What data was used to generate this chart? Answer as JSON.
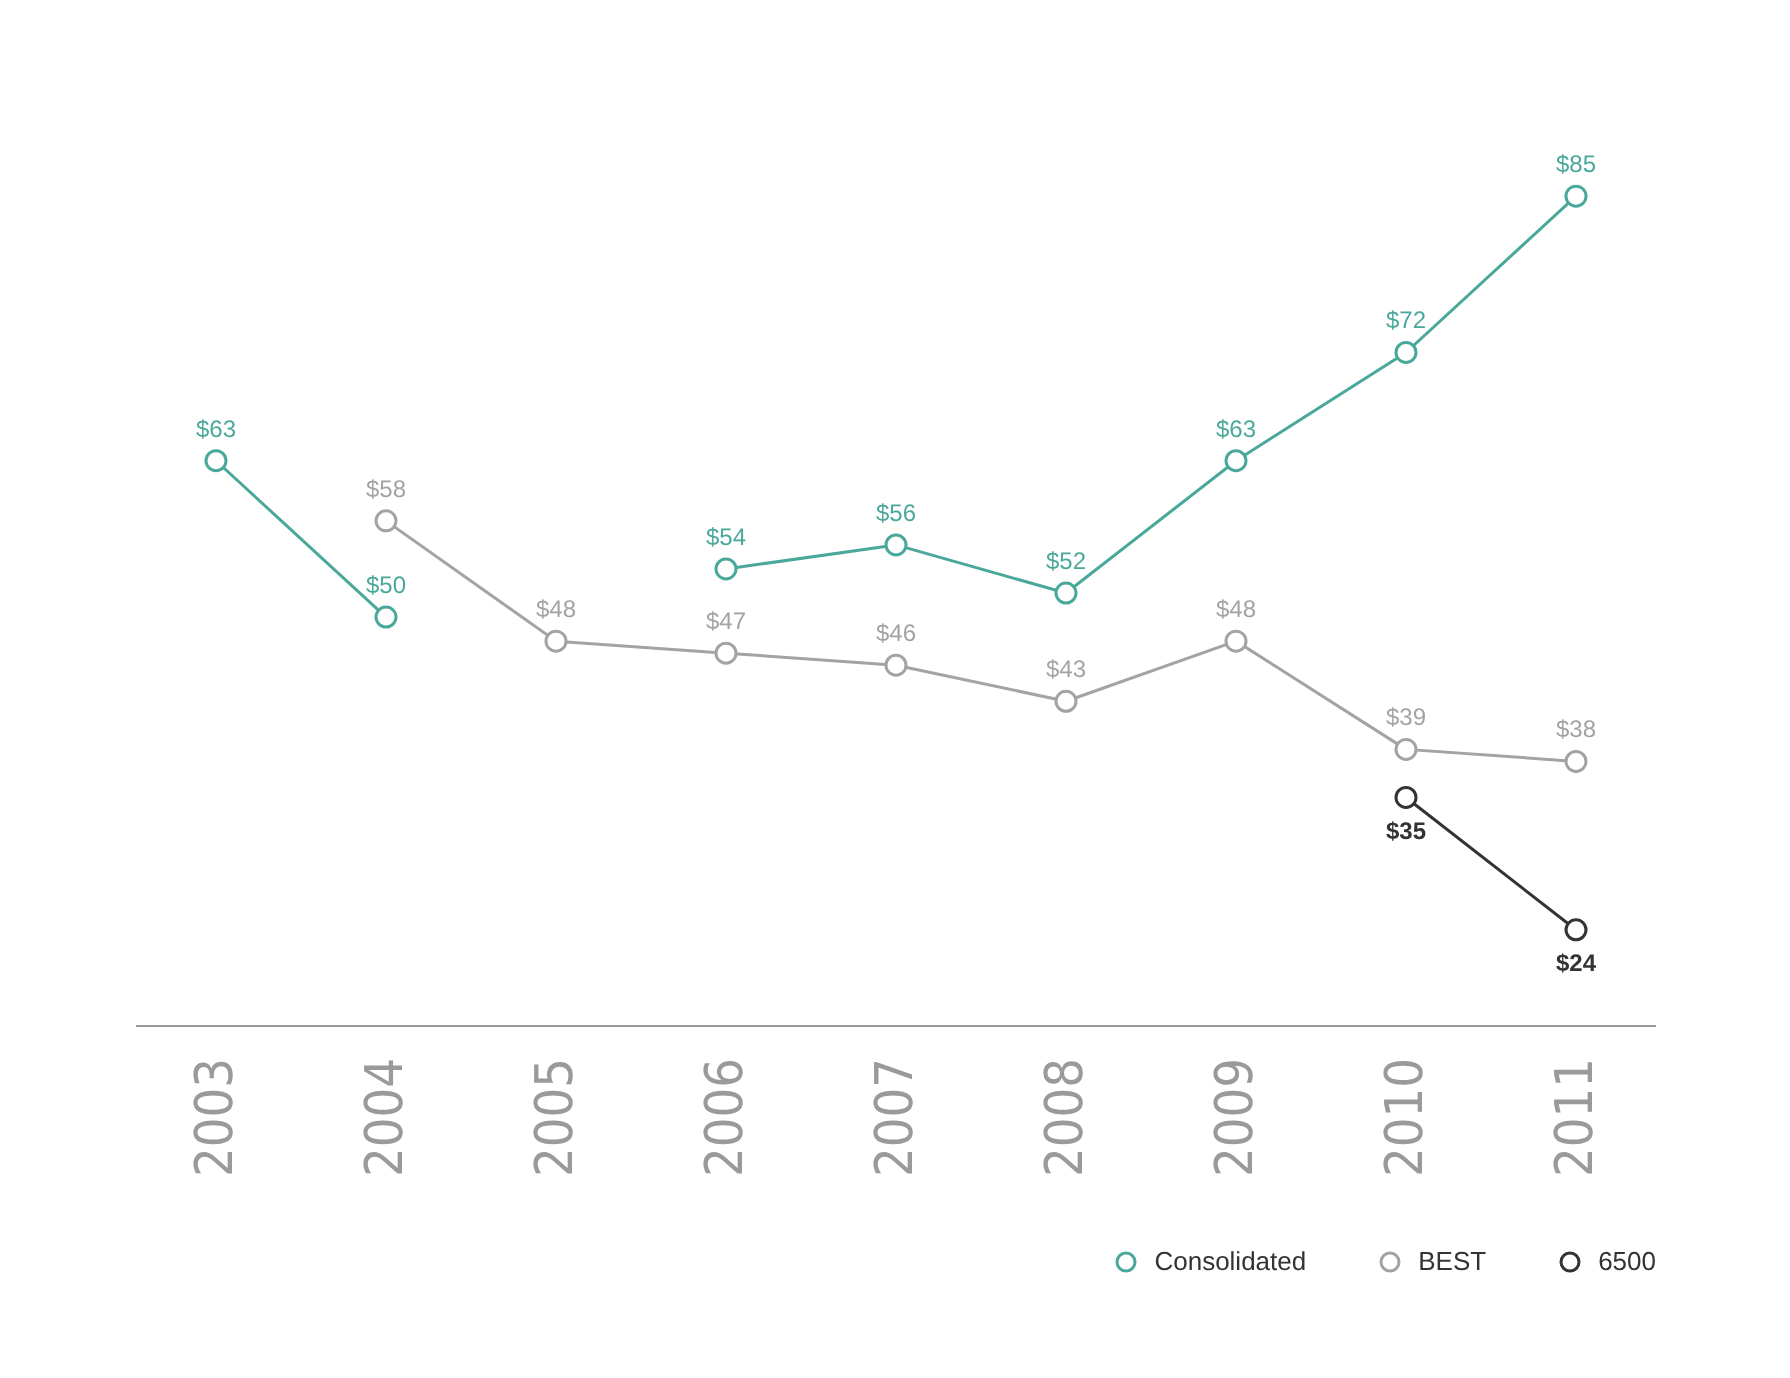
{
  "chart_data": {
    "type": "line",
    "categories": [
      "2003",
      "2004",
      "2005",
      "2006",
      "2007",
      "2008",
      "2009",
      "2010",
      "2011"
    ],
    "series": [
      {
        "name": "Consolidated",
        "color": "#4aa89a",
        "values": [
          63,
          50,
          null,
          54,
          56,
          52,
          63,
          72,
          85
        ],
        "value_labels": [
          "$63",
          "$50",
          null,
          "$54",
          "$56",
          "$52",
          "$63",
          "$72",
          "$85"
        ]
      },
      {
        "name": "BEST",
        "color": "#a3a3a3",
        "values": [
          null,
          58,
          48,
          47,
          46,
          43,
          48,
          39,
          38
        ],
        "value_labels": [
          null,
          "$58",
          "$48",
          "$47",
          "$46",
          "$43",
          "$48",
          "$39",
          "$38"
        ]
      },
      {
        "name": "6500",
        "color": "#333333",
        "values": [
          null,
          null,
          null,
          null,
          null,
          null,
          null,
          35,
          24
        ],
        "value_labels": [
          null,
          null,
          null,
          null,
          null,
          null,
          null,
          "$35",
          "$24"
        ]
      }
    ],
    "marker": "circle",
    "line_style": "solid",
    "grid": false,
    "legend": "bottom right",
    "tick_labels": "x"
  }
}
